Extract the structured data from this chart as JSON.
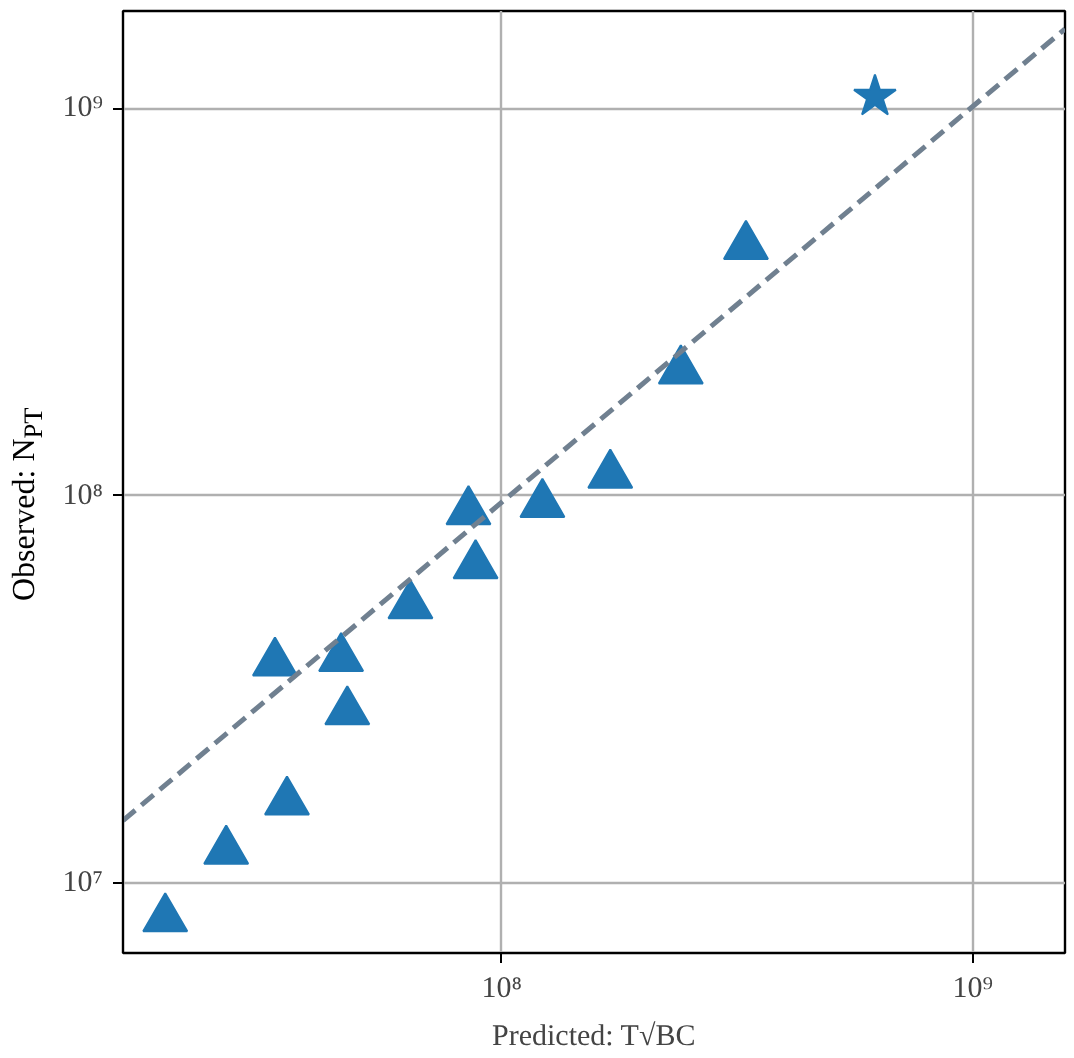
{
  "chart_data": {
    "type": "scatter",
    "xlabel": "Predicted: T√BC",
    "ylabel": "Observed: N$_{PT}$",
    "log": "xy",
    "grid": true,
    "xlim": [
      15700000.0,
      1570000000.0
    ],
    "ylim": [
      6600000.0,
      1780000000.0
    ],
    "xticks": [
      {
        "value": 100000000,
        "label": "10⁸"
      },
      {
        "value": 1000000000,
        "label": "10⁹"
      }
    ],
    "yticks": [
      {
        "value": 10000000,
        "label": "10⁷"
      },
      {
        "value": 100000000,
        "label": "10⁸"
      },
      {
        "value": 1000000000,
        "label": "10⁹"
      }
    ],
    "series": [
      {
        "marker": "triangle",
        "color": "#1f77b4",
        "x": [
          19300000.0,
          26000000.0,
          35000000.0,
          33000000.0,
          45600000.0,
          47000000.0,
          64000000.0,
          85000000.0,
          88000000.0,
          122000000.0,
          170000000.0,
          240000000.0,
          330000000.0
        ],
        "values": [
          8100000.0,
          12100000.0,
          16200000.0,
          37000000.0,
          38000000.0,
          27700000.0,
          52000000.0,
          91000000.0,
          66000000.0,
          95000000.0,
          113000000.0,
          210000000.0,
          440000000.0
        ]
      },
      {
        "marker": "star",
        "color": "#1f77b4",
        "x": [
          620000000.0
        ],
        "values": [
          1070000000.0
        ]
      },
      {
        "type": "line",
        "line_style": "dashed",
        "color": "#708090",
        "x": [
          15700000.0,
          1570000000.0
        ],
        "values": [
          14500000.0,
          1600000000.0
        ]
      }
    ]
  }
}
